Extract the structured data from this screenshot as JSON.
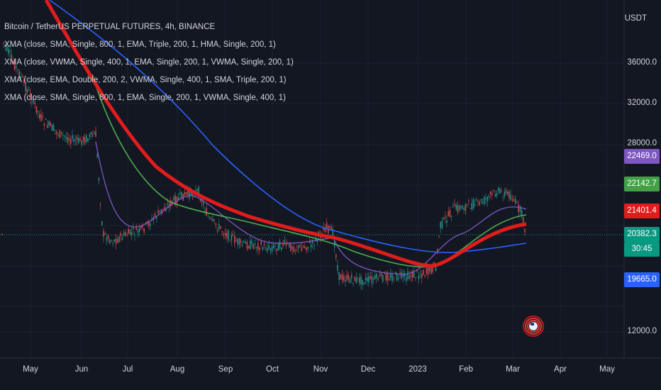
{
  "chart_data": {
    "type": "line",
    "title": "Bitcoin / TetherUS PERPETUAL FUTURES, 4h, BINANCE",
    "currency": "USDT",
    "indicators": [
      "XMA (close, SMA, Single, 800, 1, EMA, Triple, 200, 1, HMA, Single, 200, 1)",
      "XMA (close, VWMA, Single, 400, 1, EMA, Single, 200, 1, VWMA, Single, 200, 1)",
      "XMA (close, EMA, Double, 200, 2, VWMA, Single, 400, 1, SMA, Triple, 200, 1)",
      "XMA (close, SMA, Single, 800, 1, EMA, Single, 200, 1, VWMA, Single, 400, 1)"
    ],
    "y_ticks": [
      "36000.0",
      "32000.0",
      "28000.0",
      "12000.0"
    ],
    "x_ticks": [
      "May",
      "Jun",
      "Jul",
      "Aug",
      "Sep",
      "Oct",
      "Nov",
      "Dec",
      "2023",
      "Feb",
      "Mar",
      "Apr",
      "May"
    ],
    "price_labels": [
      {
        "value": "22469.0",
        "color": "#7e57c2"
      },
      {
        "value": "22142.7",
        "color": "#43a047"
      },
      {
        "value": "21401.4",
        "color": "#e01c1c"
      },
      {
        "value": "20382.3",
        "color": "#089981"
      },
      {
        "value": "30:45",
        "color": "#089981"
      },
      {
        "value": "19665.0",
        "color": "#2962ff"
      }
    ],
    "series": [
      {
        "color": "#e01c1c"
      },
      {
        "color": "#2962ff"
      },
      {
        "color": "#4caf50"
      },
      {
        "color": "#7e57c2"
      }
    ]
  }
}
